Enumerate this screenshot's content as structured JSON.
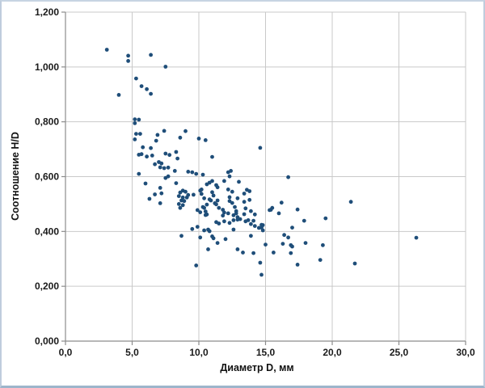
{
  "chart_data": {
    "type": "scatter",
    "title": "",
    "xlabel": "Диаметр D, мм",
    "ylabel": "Соотношение H/D",
    "xlim": [
      0,
      30
    ],
    "ylim": [
      0,
      1.2
    ],
    "x_ticks": [
      0,
      5,
      10,
      15,
      20,
      25,
      30
    ],
    "x_tick_labels": [
      "0,0",
      "5,0",
      "10,0",
      "15,0",
      "20,0",
      "25,0",
      "30,0"
    ],
    "y_ticks": [
      0,
      0.2,
      0.4,
      0.6,
      0.8,
      1.0,
      1.2
    ],
    "y_tick_labels": [
      "0,000",
      "0,200",
      "0,400",
      "0,600",
      "0,800",
      "1,000",
      "1,200"
    ],
    "grid": true,
    "legend": "none",
    "marker_color": "#1f4e79",
    "grid_color": "#c9c9c9",
    "axis_color": "#8c8c8c",
    "points": [
      [
        3.1,
        1.063
      ],
      [
        4.7,
        1.041
      ],
      [
        4.7,
        1.022
      ],
      [
        6.4,
        1.044
      ],
      [
        7.5,
        1.001
      ],
      [
        5.3,
        0.958
      ],
      [
        5.7,
        0.93
      ],
      [
        6.1,
        0.919
      ],
      [
        6.4,
        0.902
      ],
      [
        4.0,
        0.898
      ],
      [
        5.2,
        0.809
      ],
      [
        5.5,
        0.808
      ],
      [
        5.2,
        0.795
      ],
      [
        5.3,
        0.756
      ],
      [
        5.6,
        0.756
      ],
      [
        5.2,
        0.736
      ],
      [
        6.9,
        0.752
      ],
      [
        7.4,
        0.767
      ],
      [
        6.8,
        0.731
      ],
      [
        9.0,
        0.766
      ],
      [
        8.6,
        0.742
      ],
      [
        10.0,
        0.739
      ],
      [
        10.5,
        0.733
      ],
      [
        5.8,
        0.707
      ],
      [
        6.4,
        0.704
      ],
      [
        14.6,
        0.705
      ],
      [
        5.5,
        0.68
      ],
      [
        5.7,
        0.682
      ],
      [
        6.1,
        0.673
      ],
      [
        6.5,
        0.677
      ],
      [
        7.5,
        0.684
      ],
      [
        7.8,
        0.679
      ],
      [
        8.3,
        0.69
      ],
      [
        8.4,
        0.666
      ],
      [
        11.0,
        0.672
      ],
      [
        6.7,
        0.645
      ],
      [
        7.0,
        0.653
      ],
      [
        7.2,
        0.648
      ],
      [
        7.1,
        0.634
      ],
      [
        7.4,
        0.631
      ],
      [
        7.7,
        0.633
      ],
      [
        8.2,
        0.621
      ],
      [
        5.5,
        0.61
      ],
      [
        7.7,
        0.601
      ],
      [
        7.5,
        0.595
      ],
      [
        9.2,
        0.618
      ],
      [
        9.5,
        0.616
      ],
      [
        9.8,
        0.61
      ],
      [
        10.3,
        0.607
      ],
      [
        12.2,
        0.616
      ],
      [
        12.4,
        0.621
      ],
      [
        12.3,
        0.601
      ],
      [
        16.7,
        0.598
      ],
      [
        6.0,
        0.575
      ],
      [
        8.3,
        0.576
      ],
      [
        10.6,
        0.572
      ],
      [
        10.8,
        0.578
      ],
      [
        11.0,
        0.584
      ],
      [
        11.9,
        0.584
      ],
      [
        11.3,
        0.569
      ],
      [
        11.4,
        0.561
      ],
      [
        13.0,
        0.581
      ],
      [
        12.2,
        0.553
      ],
      [
        13.6,
        0.552
      ],
      [
        12.5,
        0.545
      ],
      [
        13.4,
        0.538
      ],
      [
        13.8,
        0.547
      ],
      [
        7.1,
        0.559
      ],
      [
        6.7,
        0.535
      ],
      [
        7.2,
        0.539
      ],
      [
        6.3,
        0.519
      ],
      [
        7.1,
        0.503
      ],
      [
        8.8,
        0.549
      ],
      [
        8.6,
        0.542
      ],
      [
        9.0,
        0.545
      ],
      [
        9.2,
        0.533
      ],
      [
        8.5,
        0.529
      ],
      [
        8.8,
        0.524
      ],
      [
        9.1,
        0.524
      ],
      [
        8.7,
        0.513
      ],
      [
        8.9,
        0.511
      ],
      [
        8.5,
        0.5
      ],
      [
        8.8,
        0.496
      ],
      [
        8.6,
        0.486
      ],
      [
        9.6,
        0.534
      ],
      [
        10.1,
        0.549
      ],
      [
        10.2,
        0.553
      ],
      [
        10.2,
        0.537
      ],
      [
        10.4,
        0.521
      ],
      [
        10.3,
        0.489
      ],
      [
        10.5,
        0.473
      ],
      [
        10.8,
        0.517
      ],
      [
        10.9,
        0.513
      ],
      [
        11.2,
        0.503
      ],
      [
        10.6,
        0.498
      ],
      [
        10.6,
        0.462
      ],
      [
        10.4,
        0.486
      ],
      [
        11.0,
        0.543
      ],
      [
        11.1,
        0.531
      ],
      [
        11.4,
        0.513
      ],
      [
        11.3,
        0.499
      ],
      [
        11.5,
        0.486
      ],
      [
        11.8,
        0.479
      ],
      [
        11.9,
        0.469
      ],
      [
        12.3,
        0.525
      ],
      [
        12.3,
        0.511
      ],
      [
        12.5,
        0.504
      ],
      [
        12.7,
        0.489
      ],
      [
        12.8,
        0.474
      ],
      [
        12.6,
        0.459
      ],
      [
        12.9,
        0.452
      ],
      [
        13.1,
        0.445
      ],
      [
        12.9,
        0.521
      ],
      [
        13.4,
        0.508
      ],
      [
        13.8,
        0.515
      ],
      [
        13.5,
        0.484
      ],
      [
        13.9,
        0.474
      ],
      [
        14.2,
        0.462
      ],
      [
        13.9,
        0.427
      ],
      [
        14.2,
        0.42
      ],
      [
        14.5,
        0.413
      ],
      [
        14.8,
        0.423
      ],
      [
        15.4,
        0.479
      ],
      [
        9.9,
        0.478
      ],
      [
        10.1,
        0.47
      ],
      [
        10.5,
        0.46
      ],
      [
        11.8,
        0.458
      ],
      [
        12.2,
        0.466
      ],
      [
        12.8,
        0.466
      ],
      [
        13.4,
        0.463
      ],
      [
        13.5,
        0.437
      ],
      [
        13.7,
        0.441
      ],
      [
        14.1,
        0.439
      ],
      [
        11.3,
        0.434
      ],
      [
        11.5,
        0.429
      ],
      [
        11.9,
        0.437
      ],
      [
        12.3,
        0.431
      ],
      [
        12.6,
        0.441
      ],
      [
        12.9,
        0.443
      ],
      [
        9.5,
        0.409
      ],
      [
        9.9,
        0.417
      ],
      [
        10.4,
        0.404
      ],
      [
        10.7,
        0.407
      ],
      [
        10.8,
        0.401
      ],
      [
        8.7,
        0.384
      ],
      [
        10.1,
        0.378
      ],
      [
        11.0,
        0.382
      ],
      [
        11.1,
        0.375
      ],
      [
        11.4,
        0.358
      ],
      [
        12.0,
        0.372
      ],
      [
        12.6,
        0.407
      ],
      [
        13.9,
        0.384
      ],
      [
        10.7,
        0.335
      ],
      [
        12.9,
        0.335
      ],
      [
        13.3,
        0.323
      ],
      [
        14.1,
        0.321
      ],
      [
        9.8,
        0.276
      ],
      [
        14.6,
        0.286
      ],
      [
        14.7,
        0.242
      ],
      [
        15.5,
        0.486
      ],
      [
        16.2,
        0.505
      ],
      [
        17.4,
        0.48
      ],
      [
        21.4,
        0.508
      ],
      [
        15.3,
        0.478
      ],
      [
        16.0,
        0.466
      ],
      [
        17.9,
        0.439
      ],
      [
        19.5,
        0.448
      ],
      [
        14.7,
        0.424
      ],
      [
        14.7,
        0.414
      ],
      [
        14.8,
        0.404
      ],
      [
        17.0,
        0.414
      ],
      [
        16.4,
        0.387
      ],
      [
        16.7,
        0.378
      ],
      [
        15.0,
        0.352
      ],
      [
        16.3,
        0.355
      ],
      [
        16.9,
        0.35
      ],
      [
        17.0,
        0.345
      ],
      [
        18.0,
        0.358
      ],
      [
        19.3,
        0.35
      ],
      [
        15.6,
        0.323
      ],
      [
        16.9,
        0.321
      ],
      [
        17.4,
        0.279
      ],
      [
        19.1,
        0.296
      ],
      [
        21.7,
        0.283
      ],
      [
        26.3,
        0.377
      ]
    ]
  }
}
